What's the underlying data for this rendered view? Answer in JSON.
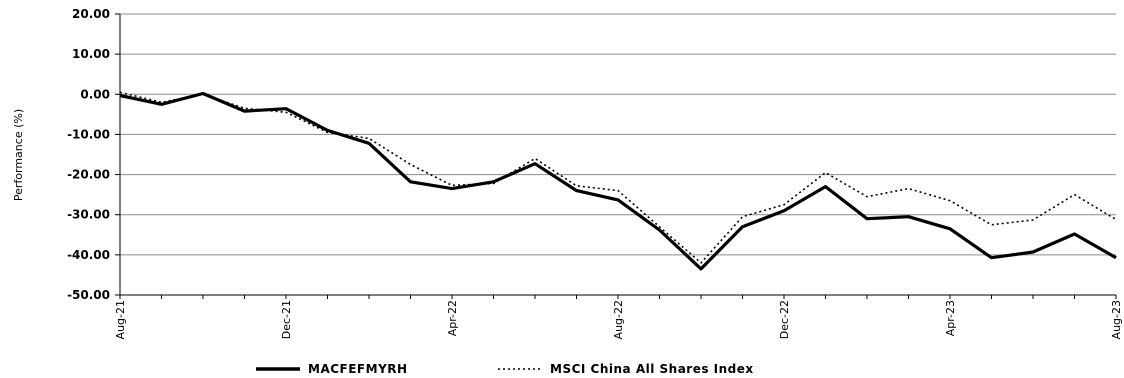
{
  "chart_data": {
    "type": "line",
    "title": "",
    "xlabel": "",
    "ylabel": "Performance (%)",
    "ylim": [
      -50,
      20
    ],
    "yticks": [
      "20.00",
      "10.00",
      "0.00",
      "-10.00",
      "-20.00",
      "-30.00",
      "-40.00",
      "-50.00"
    ],
    "xtick_labels": [
      {
        "index": 0,
        "label": "Aug-21"
      },
      {
        "index": 4,
        "label": "Dec-21"
      },
      {
        "index": 8,
        "label": "Apr-22"
      },
      {
        "index": 12,
        "label": "Aug-22"
      },
      {
        "index": 16,
        "label": "Dec-22"
      },
      {
        "index": 20,
        "label": "Apr-23"
      },
      {
        "index": 24,
        "label": "Aug-23"
      }
    ],
    "grid": "horizontal",
    "legend_position": "bottom",
    "series": [
      {
        "name": "MACFEFMYRH",
        "style": "solid",
        "color": "#000000",
        "values": [
          -0.3,
          -2.5,
          0.2,
          -4.2,
          -3.6,
          -9.0,
          -12.2,
          -21.8,
          -23.5,
          -21.8,
          -17.3,
          -24.0,
          -26.3,
          -33.8,
          -43.5,
          -33.0,
          -29.0,
          -23.0,
          -31.0,
          -30.5,
          -33.5,
          -40.7,
          -39.3,
          -34.8,
          -40.7
        ]
      },
      {
        "name": "MSCI China All Shares Index",
        "style": "dotted",
        "color": "#000000",
        "values": [
          0.5,
          -2.0,
          0.0,
          -3.5,
          -4.5,
          -9.5,
          -11.0,
          -17.5,
          -22.7,
          -22.2,
          -16.0,
          -22.8,
          -24.0,
          -33.0,
          -42.0,
          -30.5,
          -27.5,
          -19.5,
          -25.5,
          -23.5,
          -26.5,
          -32.5,
          -31.3,
          -25.0,
          -31.2
        ]
      }
    ]
  }
}
